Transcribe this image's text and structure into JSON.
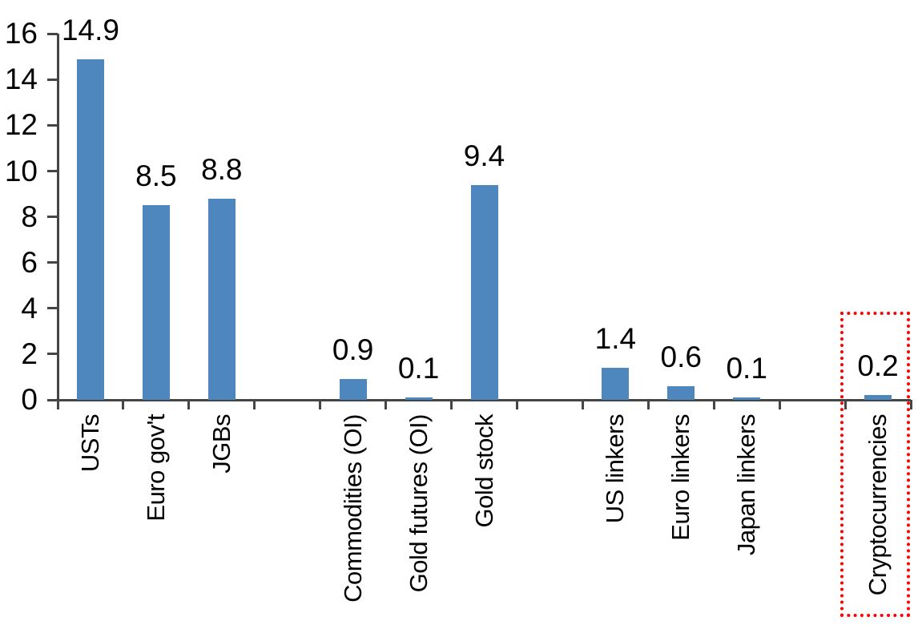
{
  "chart_data": {
    "type": "bar",
    "title": "",
    "xlabel": "",
    "ylabel": "",
    "categories": [
      "USTs",
      "Euro gov't",
      "JGBs",
      "Commodities (OI)",
      "Gold futures (OI)",
      "Gold stock",
      "US linkers",
      "Euro linkers",
      "Japan linkers",
      "Cryptocurrencies"
    ],
    "values": [
      14.9,
      8.5,
      8.8,
      0.9,
      0.1,
      9.4,
      1.4,
      0.6,
      0.1,
      0.2
    ],
    "data_labels": [
      "14.9",
      "8.5",
      "8.8",
      "0.9",
      "0.1",
      "9.4",
      "1.4",
      "0.6",
      "0.1",
      "0.2"
    ],
    "slot_indices": [
      0,
      1,
      2,
      4,
      5,
      6,
      8,
      9,
      10,
      12
    ],
    "total_slots": 13,
    "ylim": [
      0,
      16
    ],
    "yticks": [
      "0",
      "2",
      "4",
      "6",
      "8",
      "10",
      "12",
      "14",
      "16"
    ],
    "grid": false,
    "legend": null,
    "x_label_rotation_deg": 90,
    "bar_color": "#4E86BE",
    "axis_color": "#454545",
    "text_color": "#000000",
    "highlight": {
      "category": "Cryptocurrencies",
      "shape": "dotted-rectangle",
      "color": "#FF0000"
    }
  }
}
